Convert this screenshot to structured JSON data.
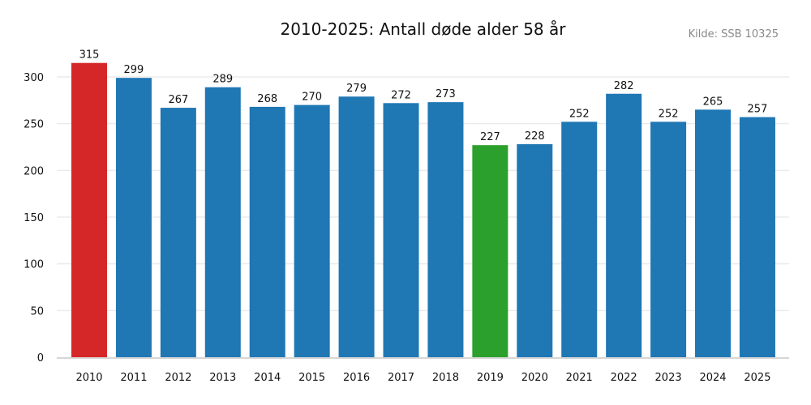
{
  "chart_data": {
    "type": "bar",
    "title": "2010-2025: Antall døde alder 58 år",
    "source": "Kilde: SSB 10325",
    "categories": [
      "2010",
      "2011",
      "2012",
      "2013",
      "2014",
      "2015",
      "2016",
      "2017",
      "2018",
      "2019",
      "2020",
      "2021",
      "2022",
      "2023",
      "2024",
      "2025"
    ],
    "values": [
      315,
      299,
      267,
      289,
      268,
      270,
      279,
      272,
      273,
      227,
      228,
      252,
      282,
      252,
      265,
      257
    ],
    "colors": {
      "default": "#1f77b4",
      "max": "#d62728",
      "min": "#2ca02c"
    },
    "ylim": [
      0,
      315
    ],
    "yticks": [
      0,
      50,
      100,
      150,
      200,
      250,
      300
    ],
    "grid": true,
    "xlabel": "",
    "ylabel": ""
  }
}
